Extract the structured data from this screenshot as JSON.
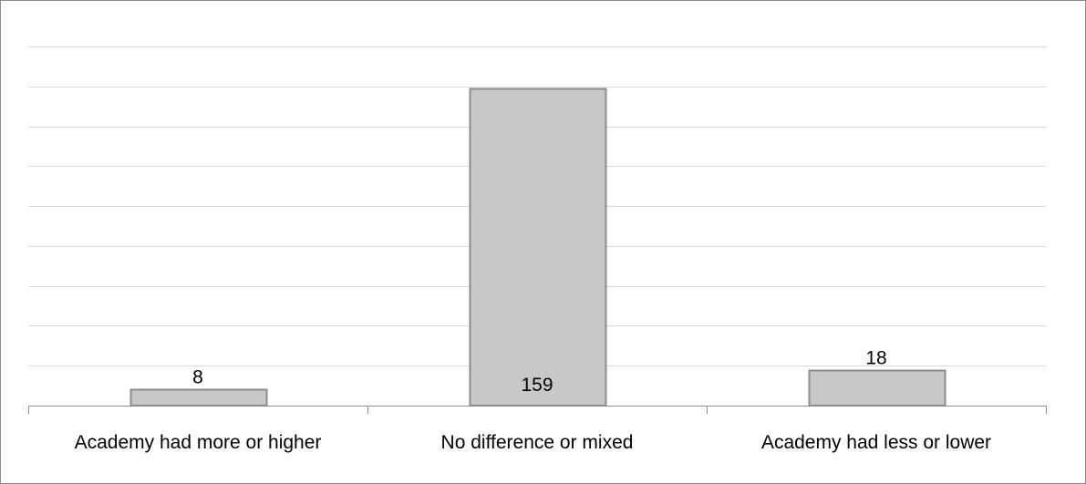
{
  "chart_data": {
    "type": "bar",
    "categories": [
      "Academy had more or higher",
      "No difference or mixed",
      "Academy had less or lower"
    ],
    "values": [
      8,
      159,
      18
    ],
    "data_labels": [
      "8",
      "159",
      "18"
    ],
    "data_label_positions": [
      "outside-end",
      "inside-base",
      "outside-end"
    ],
    "ylim": [
      0,
      180
    ],
    "y_gridline_step": 20,
    "title": "",
    "xlabel": "",
    "ylabel": "",
    "y_axis_labels_visible": false,
    "grid": true,
    "legend": "none",
    "colors": {
      "bar_fill": "#c8c8c8",
      "bar_stroke": "#8c8c8c",
      "gridline": "#d9d9d9",
      "axis": "#8c8c8c",
      "border": "#8c8c8c",
      "text": "#000000"
    }
  }
}
